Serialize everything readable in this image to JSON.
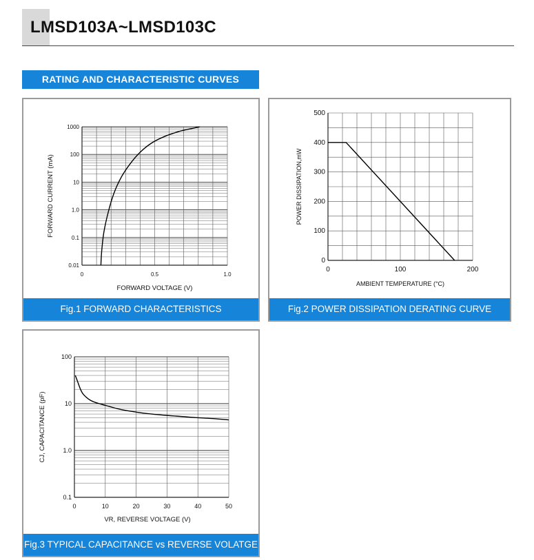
{
  "header": {
    "title": "LMSD103A~LMSD103C"
  },
  "section": {
    "banner": "RATING AND CHARACTERISTIC CURVES"
  },
  "figures": {
    "fig1_caption": "Fig.1 FORWARD CHARACTERISTICS",
    "fig2_caption": "Fig.2 POWER DISSIPATION DERATING CURVE",
    "fig3_caption": "Fig.3  TYPICAL CAPACITANCE vs REVERSE VOLATGE"
  },
  "chart_data": [
    {
      "type": "line",
      "xlabel": "FORWARD VOLTAGE (V)",
      "ylabel": "FORWARD CURRENT (mA)",
      "xlim": [
        0,
        1.0
      ],
      "ylim": [
        0.01,
        1000
      ],
      "yscale": "log",
      "grid": true,
      "x_ticks": [
        "0",
        "0.5",
        "1.0"
      ],
      "y_ticks": [
        "1000",
        "100",
        "10",
        "1.0",
        "0.1",
        "0.01"
      ],
      "series": [
        {
          "x": [
            0.13,
            0.135,
            0.15,
            0.18,
            0.22,
            0.27,
            0.33,
            0.4,
            0.48,
            0.57,
            0.67,
            0.75,
            0.81
          ],
          "y": [
            0.01,
            0.03,
            0.15,
            0.8,
            4,
            15,
            45,
            120,
            260,
            450,
            680,
            850,
            1000
          ]
        }
      ]
    },
    {
      "type": "line",
      "xlabel": "AMBIENT TEMPERATURE (°C)",
      "ylabel": "POWER DISSIPATION,mW",
      "xlim": [
        0,
        200
      ],
      "ylim": [
        0,
        500
      ],
      "grid": true,
      "x_ticks": [
        "0",
        "100",
        "200"
      ],
      "y_ticks": [
        "0",
        "100",
        "200",
        "300",
        "400",
        "500"
      ],
      "series": [
        {
          "x": [
            0,
            25,
            175
          ],
          "y": [
            400,
            400,
            0
          ]
        }
      ]
    },
    {
      "type": "line",
      "xlabel": "VR, REVERSE VOLTAGE (V)",
      "ylabel": "CJ, CAPACITANCE (pF)",
      "xlim": [
        0,
        50
      ],
      "ylim": [
        0.1,
        100
      ],
      "yscale": "log",
      "grid": true,
      "x_ticks": [
        "0",
        "10",
        "20",
        "30",
        "40",
        "50"
      ],
      "y_ticks": [
        "100",
        "10",
        "1.0",
        "0.1"
      ],
      "series": [
        {
          "x": [
            0.3,
            1,
            2,
            3,
            5,
            7,
            10,
            15,
            20,
            25,
            30,
            35,
            40,
            45,
            50
          ],
          "y": [
            40,
            30,
            20,
            15.5,
            12,
            10.5,
            9.2,
            7.5,
            6.6,
            6.0,
            5.6,
            5.3,
            5.0,
            4.8,
            4.5
          ]
        }
      ]
    }
  ]
}
